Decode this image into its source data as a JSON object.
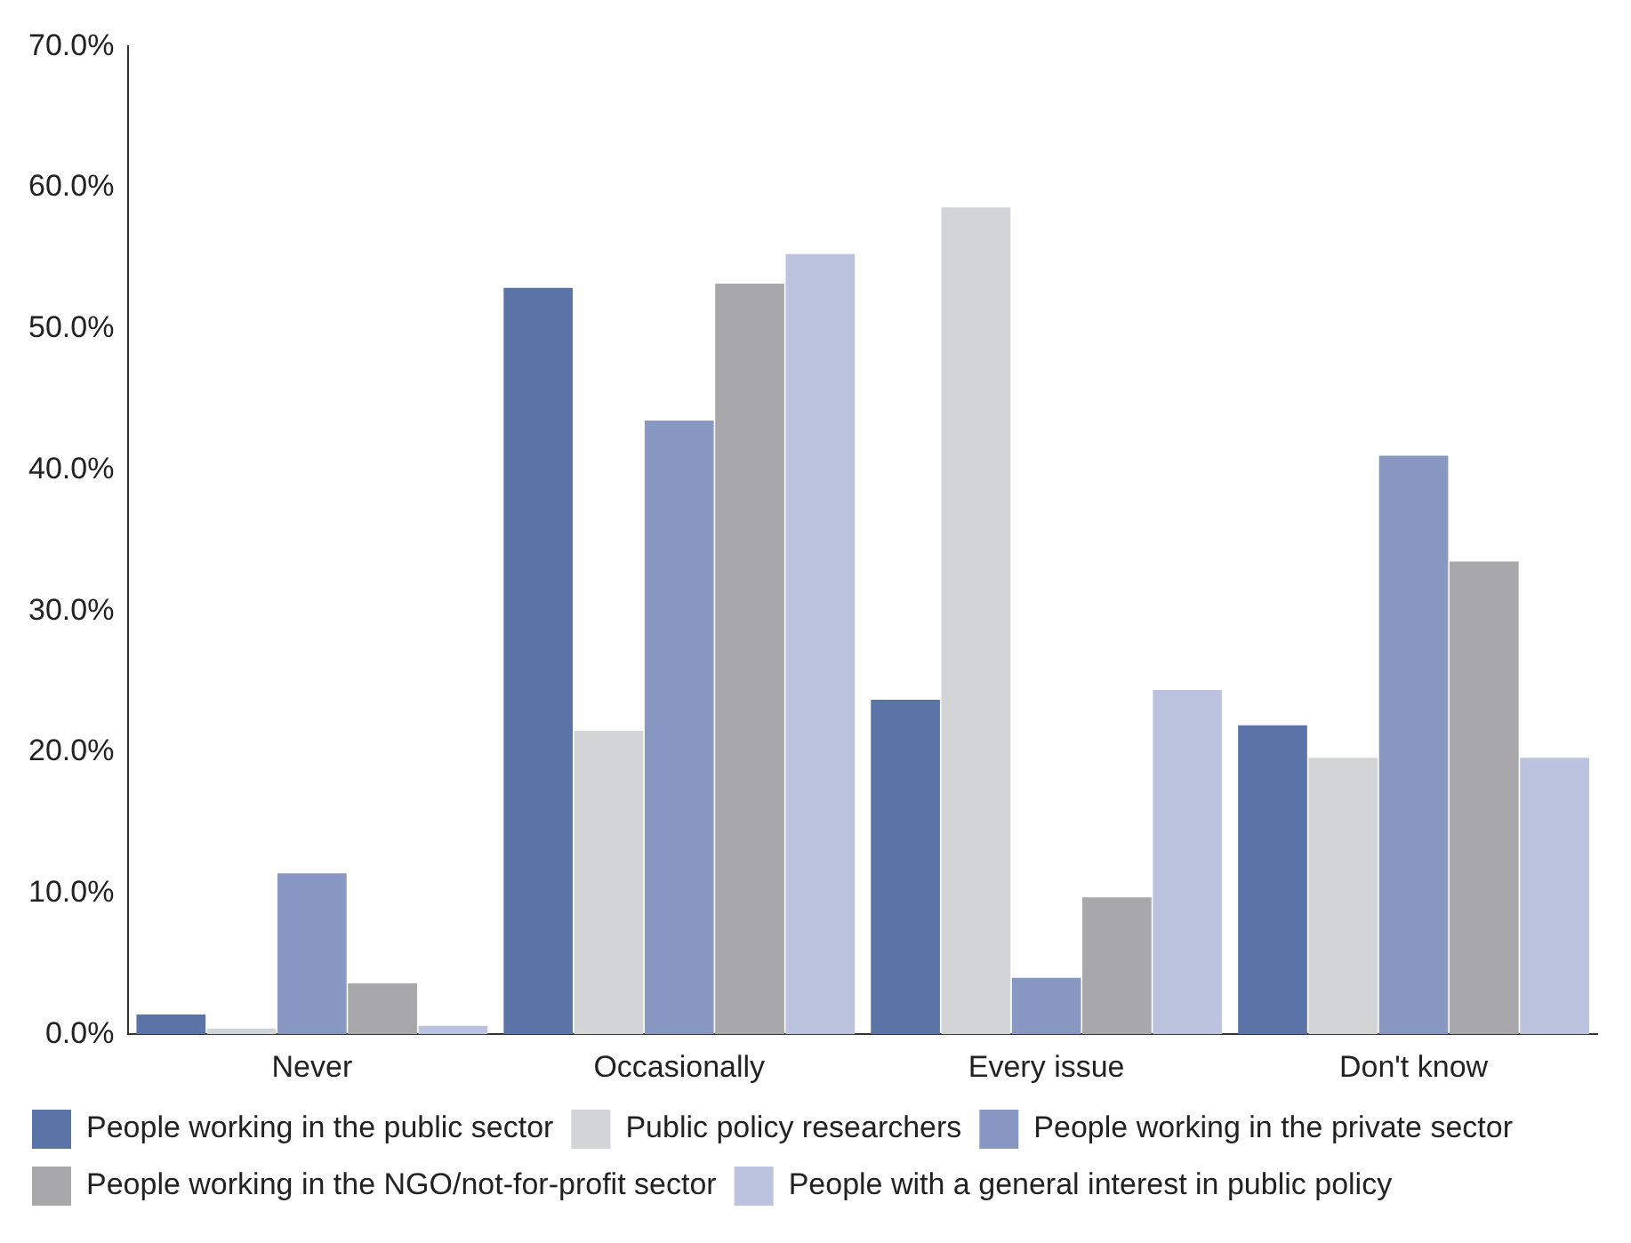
{
  "chart_data": {
    "type": "bar",
    "categories": [
      "Never",
      "Occasionally",
      "Every issue",
      "Don't know"
    ],
    "series": [
      {
        "name": "People working in the public sector",
        "color": "#5a74a8",
        "values": [
          1.4,
          52.9,
          23.7,
          21.9
        ]
      },
      {
        "name": "Public policy researchers",
        "color": "#d3d4d6",
        "values": [
          0.4,
          21.5,
          58.6,
          19.6
        ]
      },
      {
        "name": "People working in the private sector",
        "color": "#8898c2",
        "values": [
          11.4,
          43.5,
          4.0,
          41.0
        ]
      },
      {
        "name": "People working in the NGO/not-for-profit sector",
        "color": "#a8a8ab",
        "values": [
          3.6,
          53.2,
          9.7,
          33.5
        ]
      },
      {
        "name": "People with a general interest in public policy",
        "color": "#bcc3de",
        "values": [
          0.6,
          55.3,
          24.4,
          19.6
        ]
      }
    ],
    "ylim": [
      0,
      70
    ],
    "yticks": [
      {
        "value": 0,
        "label": "0.0%"
      },
      {
        "value": 10,
        "label": "10.0%"
      },
      {
        "value": 20,
        "label": "20.0%"
      },
      {
        "value": 30,
        "label": "30.0%"
      },
      {
        "value": 40,
        "label": "40.0%"
      },
      {
        "value": 50,
        "label": "50.0%"
      },
      {
        "value": 60,
        "label": "60.0%"
      },
      {
        "value": 70,
        "label": "70.0%"
      }
    ],
    "grid": false,
    "legend": "bottom"
  }
}
